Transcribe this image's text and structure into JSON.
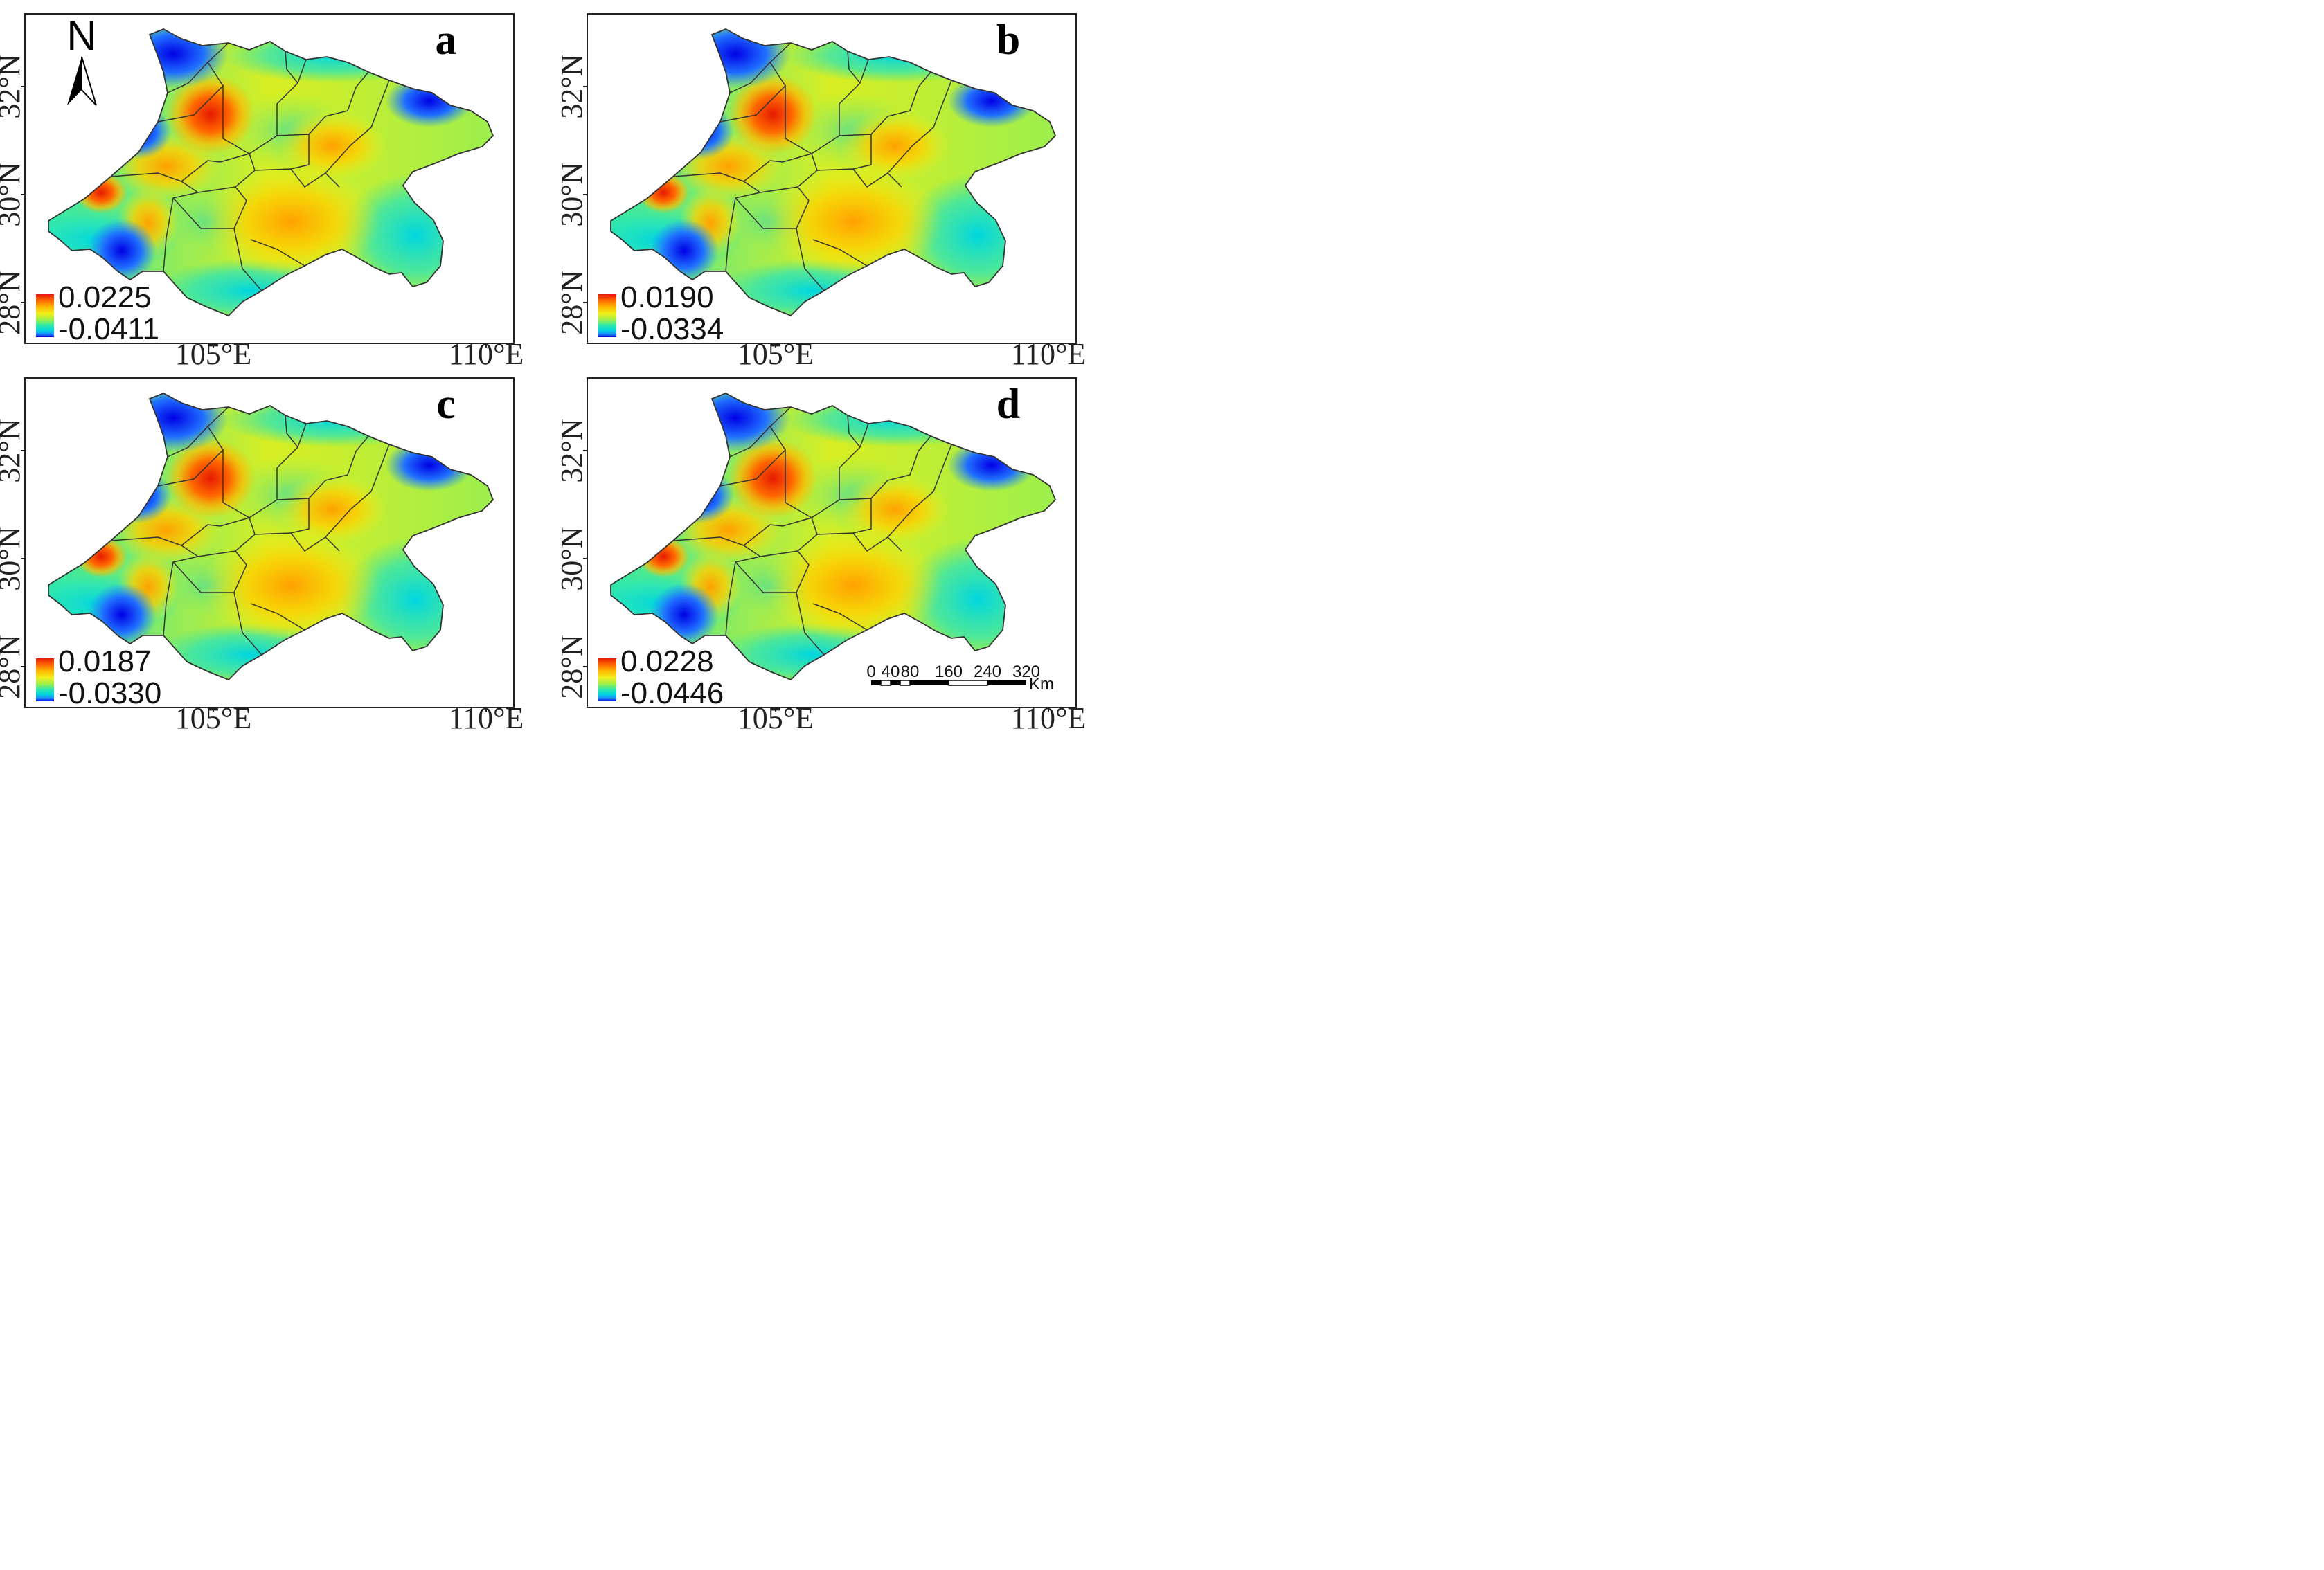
{
  "figure": {
    "panels": [
      {
        "id": "a",
        "label": "a",
        "legend_max": "0.0225",
        "legend_min": "-0.0411"
      },
      {
        "id": "b",
        "label": "b",
        "legend_max": "0.0190",
        "legend_min": "-0.0334"
      },
      {
        "id": "c",
        "label": "c",
        "legend_max": "0.0187",
        "legend_min": "-0.0330"
      },
      {
        "id": "d",
        "label": "d",
        "legend_max": "0.0228",
        "legend_min": "-0.0446"
      }
    ],
    "axis": {
      "lon_ticks": [
        "105°E",
        "110°E"
      ],
      "lat_ticks": [
        "28°N",
        "30°N",
        "32°N"
      ]
    },
    "north_arrow": {
      "label": "N"
    },
    "scale_bar": {
      "ticks": [
        "0",
        "40",
        "80",
        "160",
        "240",
        "320"
      ],
      "unit": "Km"
    },
    "colors": {
      "ramp": [
        "#0000e6",
        "#1f8fff",
        "#00d6e0",
        "#33e8a6",
        "#9cef4e",
        "#f0ef1c",
        "#ffba00",
        "#ff6a00",
        "#e61a00"
      ]
    }
  }
}
